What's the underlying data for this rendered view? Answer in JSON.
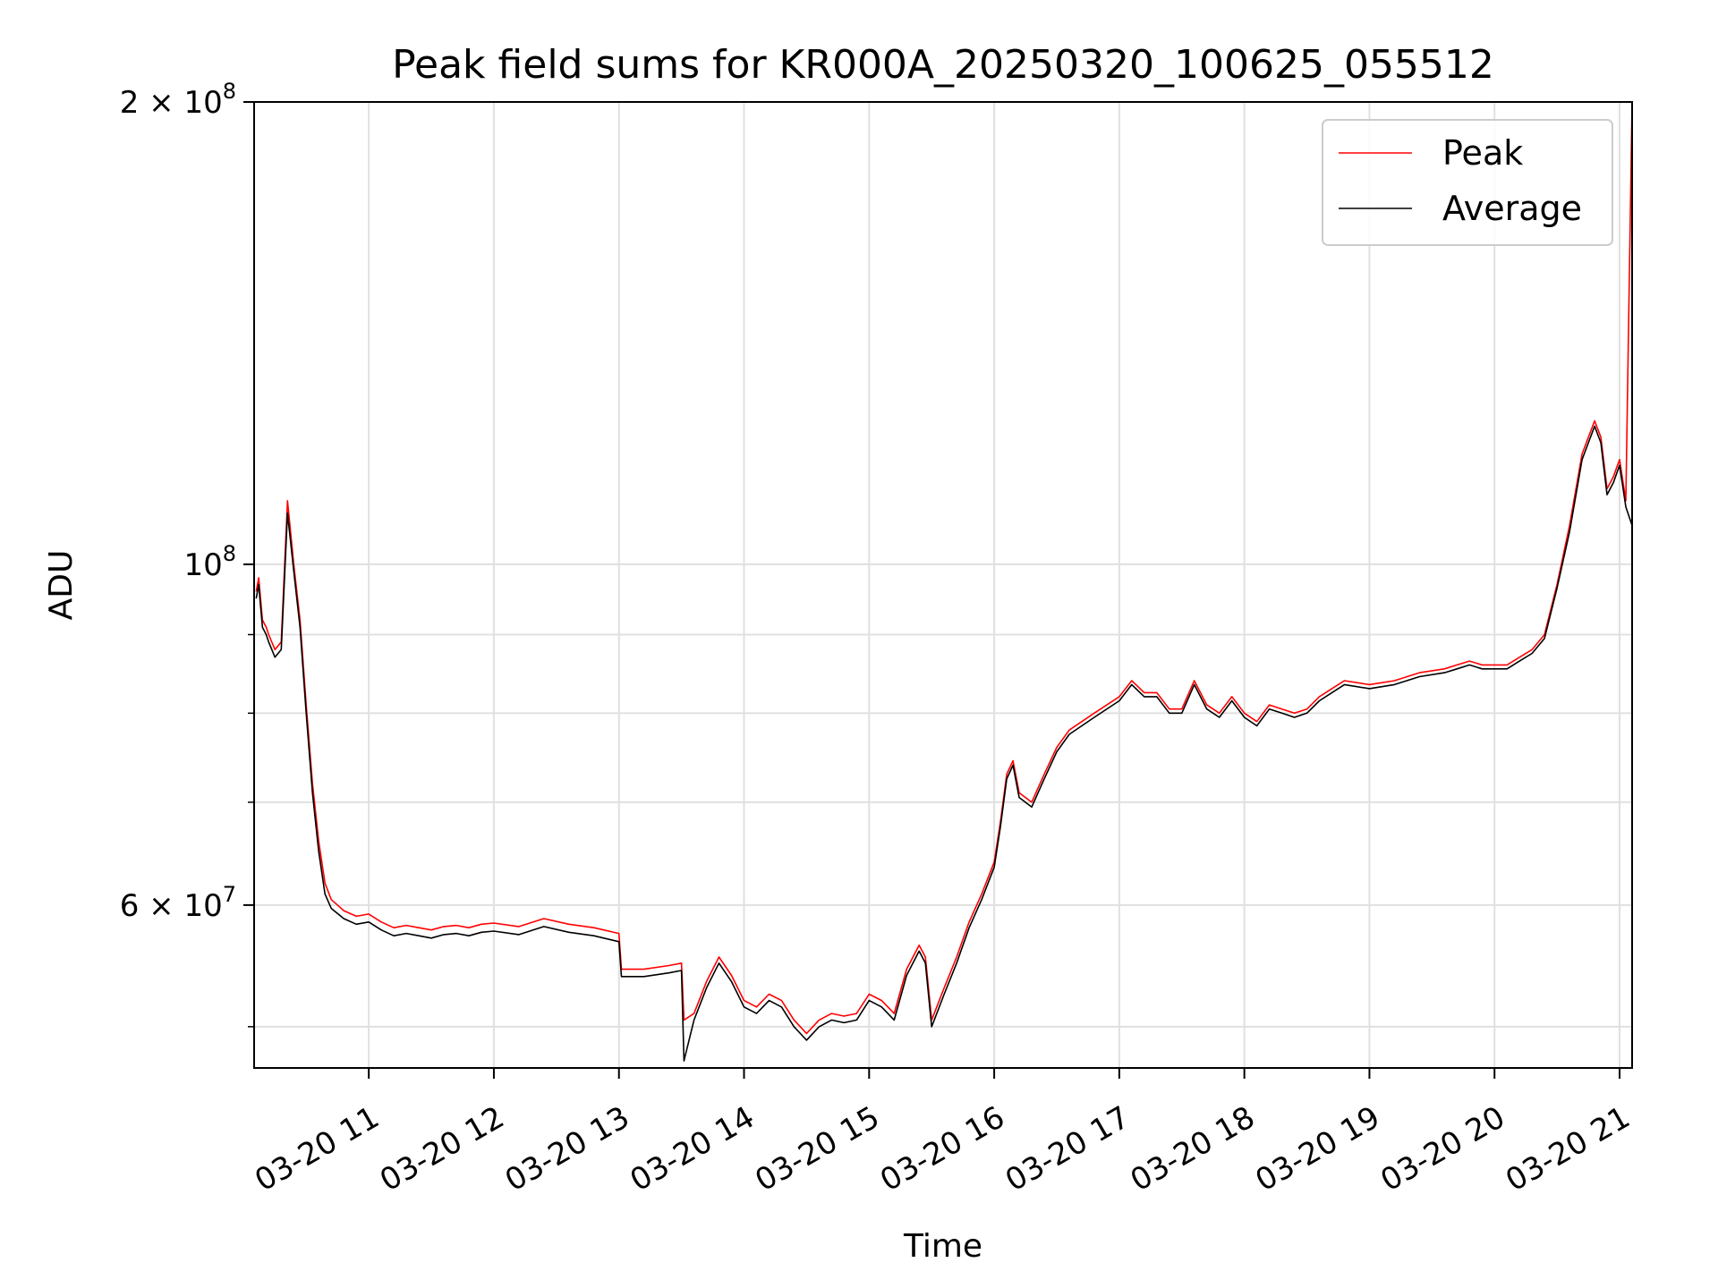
{
  "chart_data": {
    "type": "line",
    "title": "Peak field sums for KR000A_20250320_100625_055512",
    "xlabel": "Time",
    "ylabel": "ADU",
    "yscale": "log",
    "grid": true,
    "legend_placement": "top-right",
    "x_ticks": [
      "03-20 11",
      "03-20 12",
      "03-20 13",
      "03-20 14",
      "03-20 15",
      "03-20 16",
      "03-20 17",
      "03-20 18",
      "03-20 19",
      "03-20 20",
      "03-20 21"
    ],
    "y_ticks": [
      {
        "value": 60000000,
        "mantissa": "6",
        "exponent": "7"
      },
      {
        "value": 100000000,
        "mantissa": "",
        "exponent": "8"
      },
      {
        "value": 200000000,
        "mantissa": "2",
        "exponent": "8"
      }
    ],
    "xlim": [
      "2025-03-20 10:06",
      "2025-03-20 21:06"
    ],
    "ylim": [
      47000000,
      200000000
    ],
    "x_unit": "hours since 2025-03-20 10:00",
    "series": [
      {
        "name": "Peak",
        "color": "#ff0000",
        "x": [
          0.1,
          0.12,
          0.15,
          0.18,
          0.2,
          0.25,
          0.3,
          0.35,
          0.4,
          0.45,
          0.5,
          0.55,
          0.6,
          0.65,
          0.7,
          0.8,
          0.9,
          1.0,
          1.1,
          1.2,
          1.3,
          1.4,
          1.5,
          1.6,
          1.7,
          1.8,
          1.9,
          2.0,
          2.2,
          2.4,
          2.6,
          2.8,
          3.0,
          3.02,
          3.2,
          3.4,
          3.5,
          3.52,
          3.6,
          3.7,
          3.8,
          3.9,
          4.0,
          4.1,
          4.2,
          4.3,
          4.4,
          4.5,
          4.6,
          4.7,
          4.8,
          4.9,
          5.0,
          5.1,
          5.2,
          5.3,
          5.4,
          5.45,
          5.5,
          5.6,
          5.7,
          5.8,
          5.9,
          6.0,
          6.05,
          6.1,
          6.15,
          6.2,
          6.3,
          6.4,
          6.5,
          6.6,
          6.8,
          7.0,
          7.1,
          7.2,
          7.3,
          7.4,
          7.5,
          7.6,
          7.7,
          7.8,
          7.9,
          8.0,
          8.1,
          8.2,
          8.3,
          8.4,
          8.5,
          8.6,
          8.7,
          8.8,
          9.0,
          9.2,
          9.4,
          9.6,
          9.7,
          9.8,
          9.9,
          10.0,
          10.1,
          10.2,
          10.3,
          10.4,
          10.5,
          10.6,
          10.7,
          10.8,
          10.85,
          10.9,
          10.95,
          11.0,
          11.05,
          11.1
        ],
        "y": [
          96000000,
          98000000,
          92000000,
          91000000,
          90000000,
          88000000,
          89000000,
          110000000,
          100000000,
          92000000,
          81000000,
          72000000,
          66000000,
          62000000,
          60500000,
          59500000,
          59000000,
          59200000,
          58500000,
          58000000,
          58200000,
          58000000,
          57800000,
          58100000,
          58200000,
          58000000,
          58300000,
          58400000,
          58100000,
          58800000,
          58300000,
          58000000,
          57500000,
          54500000,
          54500000,
          54800000,
          55000000,
          50500000,
          51000000,
          53500000,
          55500000,
          54000000,
          52000000,
          51500000,
          52500000,
          52000000,
          50500000,
          49500000,
          50500000,
          51000000,
          50800000,
          51000000,
          52500000,
          52000000,
          51000000,
          54500000,
          56500000,
          55500000,
          50500000,
          53000000,
          55500000,
          58500000,
          61000000,
          64000000,
          68000000,
          73000000,
          74500000,
          71000000,
          70000000,
          73000000,
          76000000,
          78000000,
          80000000,
          82000000,
          84000000,
          82500000,
          82500000,
          80500000,
          80500000,
          84000000,
          81000000,
          80000000,
          82000000,
          80000000,
          79000000,
          81000000,
          80500000,
          80000000,
          80500000,
          82000000,
          83000000,
          84000000,
          83500000,
          84000000,
          85000000,
          85500000,
          86000000,
          86500000,
          86000000,
          86000000,
          86000000,
          87000000,
          88000000,
          90000000,
          97000000,
          106000000,
          118000000,
          124000000,
          121000000,
          112000000,
          114000000,
          117000000,
          110000000,
          200000000
        ]
      },
      {
        "name": "Average",
        "color": "#000000",
        "x": [
          0.1,
          0.12,
          0.15,
          0.18,
          0.2,
          0.25,
          0.3,
          0.35,
          0.4,
          0.45,
          0.5,
          0.55,
          0.6,
          0.65,
          0.7,
          0.8,
          0.9,
          1.0,
          1.1,
          1.2,
          1.3,
          1.4,
          1.5,
          1.6,
          1.7,
          1.8,
          1.9,
          2.0,
          2.2,
          2.4,
          2.6,
          2.8,
          3.0,
          3.02,
          3.2,
          3.4,
          3.5,
          3.52,
          3.6,
          3.7,
          3.8,
          3.9,
          4.0,
          4.1,
          4.2,
          4.3,
          4.4,
          4.5,
          4.6,
          4.7,
          4.8,
          4.9,
          5.0,
          5.1,
          5.2,
          5.3,
          5.4,
          5.45,
          5.5,
          5.6,
          5.7,
          5.8,
          5.9,
          6.0,
          6.05,
          6.1,
          6.15,
          6.2,
          6.3,
          6.4,
          6.5,
          6.6,
          6.8,
          7.0,
          7.1,
          7.2,
          7.3,
          7.4,
          7.5,
          7.6,
          7.7,
          7.8,
          7.9,
          8.0,
          8.1,
          8.2,
          8.3,
          8.4,
          8.5,
          8.6,
          8.7,
          8.8,
          9.0,
          9.2,
          9.4,
          9.6,
          9.7,
          9.8,
          9.9,
          10.0,
          10.1,
          10.2,
          10.3,
          10.4,
          10.5,
          10.6,
          10.7,
          10.8,
          10.85,
          10.9,
          10.95,
          11.0,
          11.05,
          11.1
        ],
        "y": [
          95000000,
          97000000,
          91000000,
          90000000,
          89000000,
          87000000,
          88000000,
          108000000,
          99000000,
          91000000,
          80000000,
          71000000,
          65000000,
          61000000,
          59700000,
          58800000,
          58300000,
          58500000,
          57800000,
          57300000,
          57500000,
          57300000,
          57100000,
          57400000,
          57500000,
          57300000,
          57600000,
          57700000,
          57400000,
          58100000,
          57600000,
          57300000,
          56800000,
          53900000,
          53900000,
          54200000,
          54400000,
          47500000,
          50500000,
          53000000,
          55000000,
          53500000,
          51500000,
          51000000,
          52000000,
          51500000,
          50000000,
          49000000,
          50000000,
          50500000,
          50300000,
          50500000,
          52000000,
          51500000,
          50500000,
          54000000,
          56000000,
          55000000,
          50000000,
          52500000,
          55000000,
          58000000,
          60500000,
          63500000,
          67500000,
          72500000,
          74000000,
          70500000,
          69500000,
          72500000,
          75500000,
          77500000,
          79500000,
          81500000,
          83500000,
          82000000,
          82000000,
          80000000,
          80000000,
          83500000,
          80500000,
          79500000,
          81500000,
          79500000,
          78500000,
          80500000,
          80000000,
          79500000,
          80000000,
          81500000,
          82500000,
          83500000,
          83000000,
          83500000,
          84500000,
          85000000,
          85500000,
          86000000,
          85500000,
          85500000,
          85500000,
          86500000,
          87500000,
          89500000,
          96500000,
          105000000,
          117000000,
          123000000,
          120000000,
          111000000,
          113000000,
          116000000,
          109000000,
          106000000
        ]
      }
    ]
  }
}
